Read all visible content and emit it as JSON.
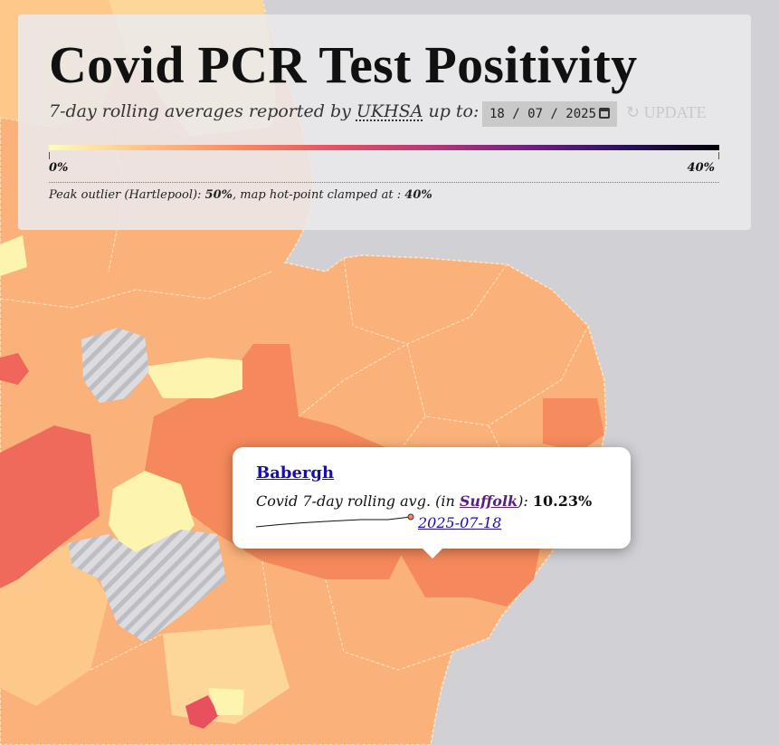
{
  "header": {
    "title": "Covid PCR Test Positivity",
    "subtitle_prefix": "7-day rolling averages reported by",
    "source": "UKHSA",
    "subtitle_suffix": "up to:",
    "date_input": "18 / 07 / 2025",
    "update_button": "↻ UPDATE"
  },
  "legend": {
    "min_label": "0%",
    "max_label": "40%",
    "note_prefix": "Peak outlier (Hartlepool):",
    "peak": "50%",
    "note_middle": ", map hot-point clamped at :",
    "clamp": "40%"
  },
  "tooltip": {
    "area": "Babergh",
    "text_prefix": "Covid 7-day rolling avg. (in",
    "region": "Suffolk",
    "text_suffix": "):",
    "value": "10.23%",
    "date": "2025-07-18"
  }
}
